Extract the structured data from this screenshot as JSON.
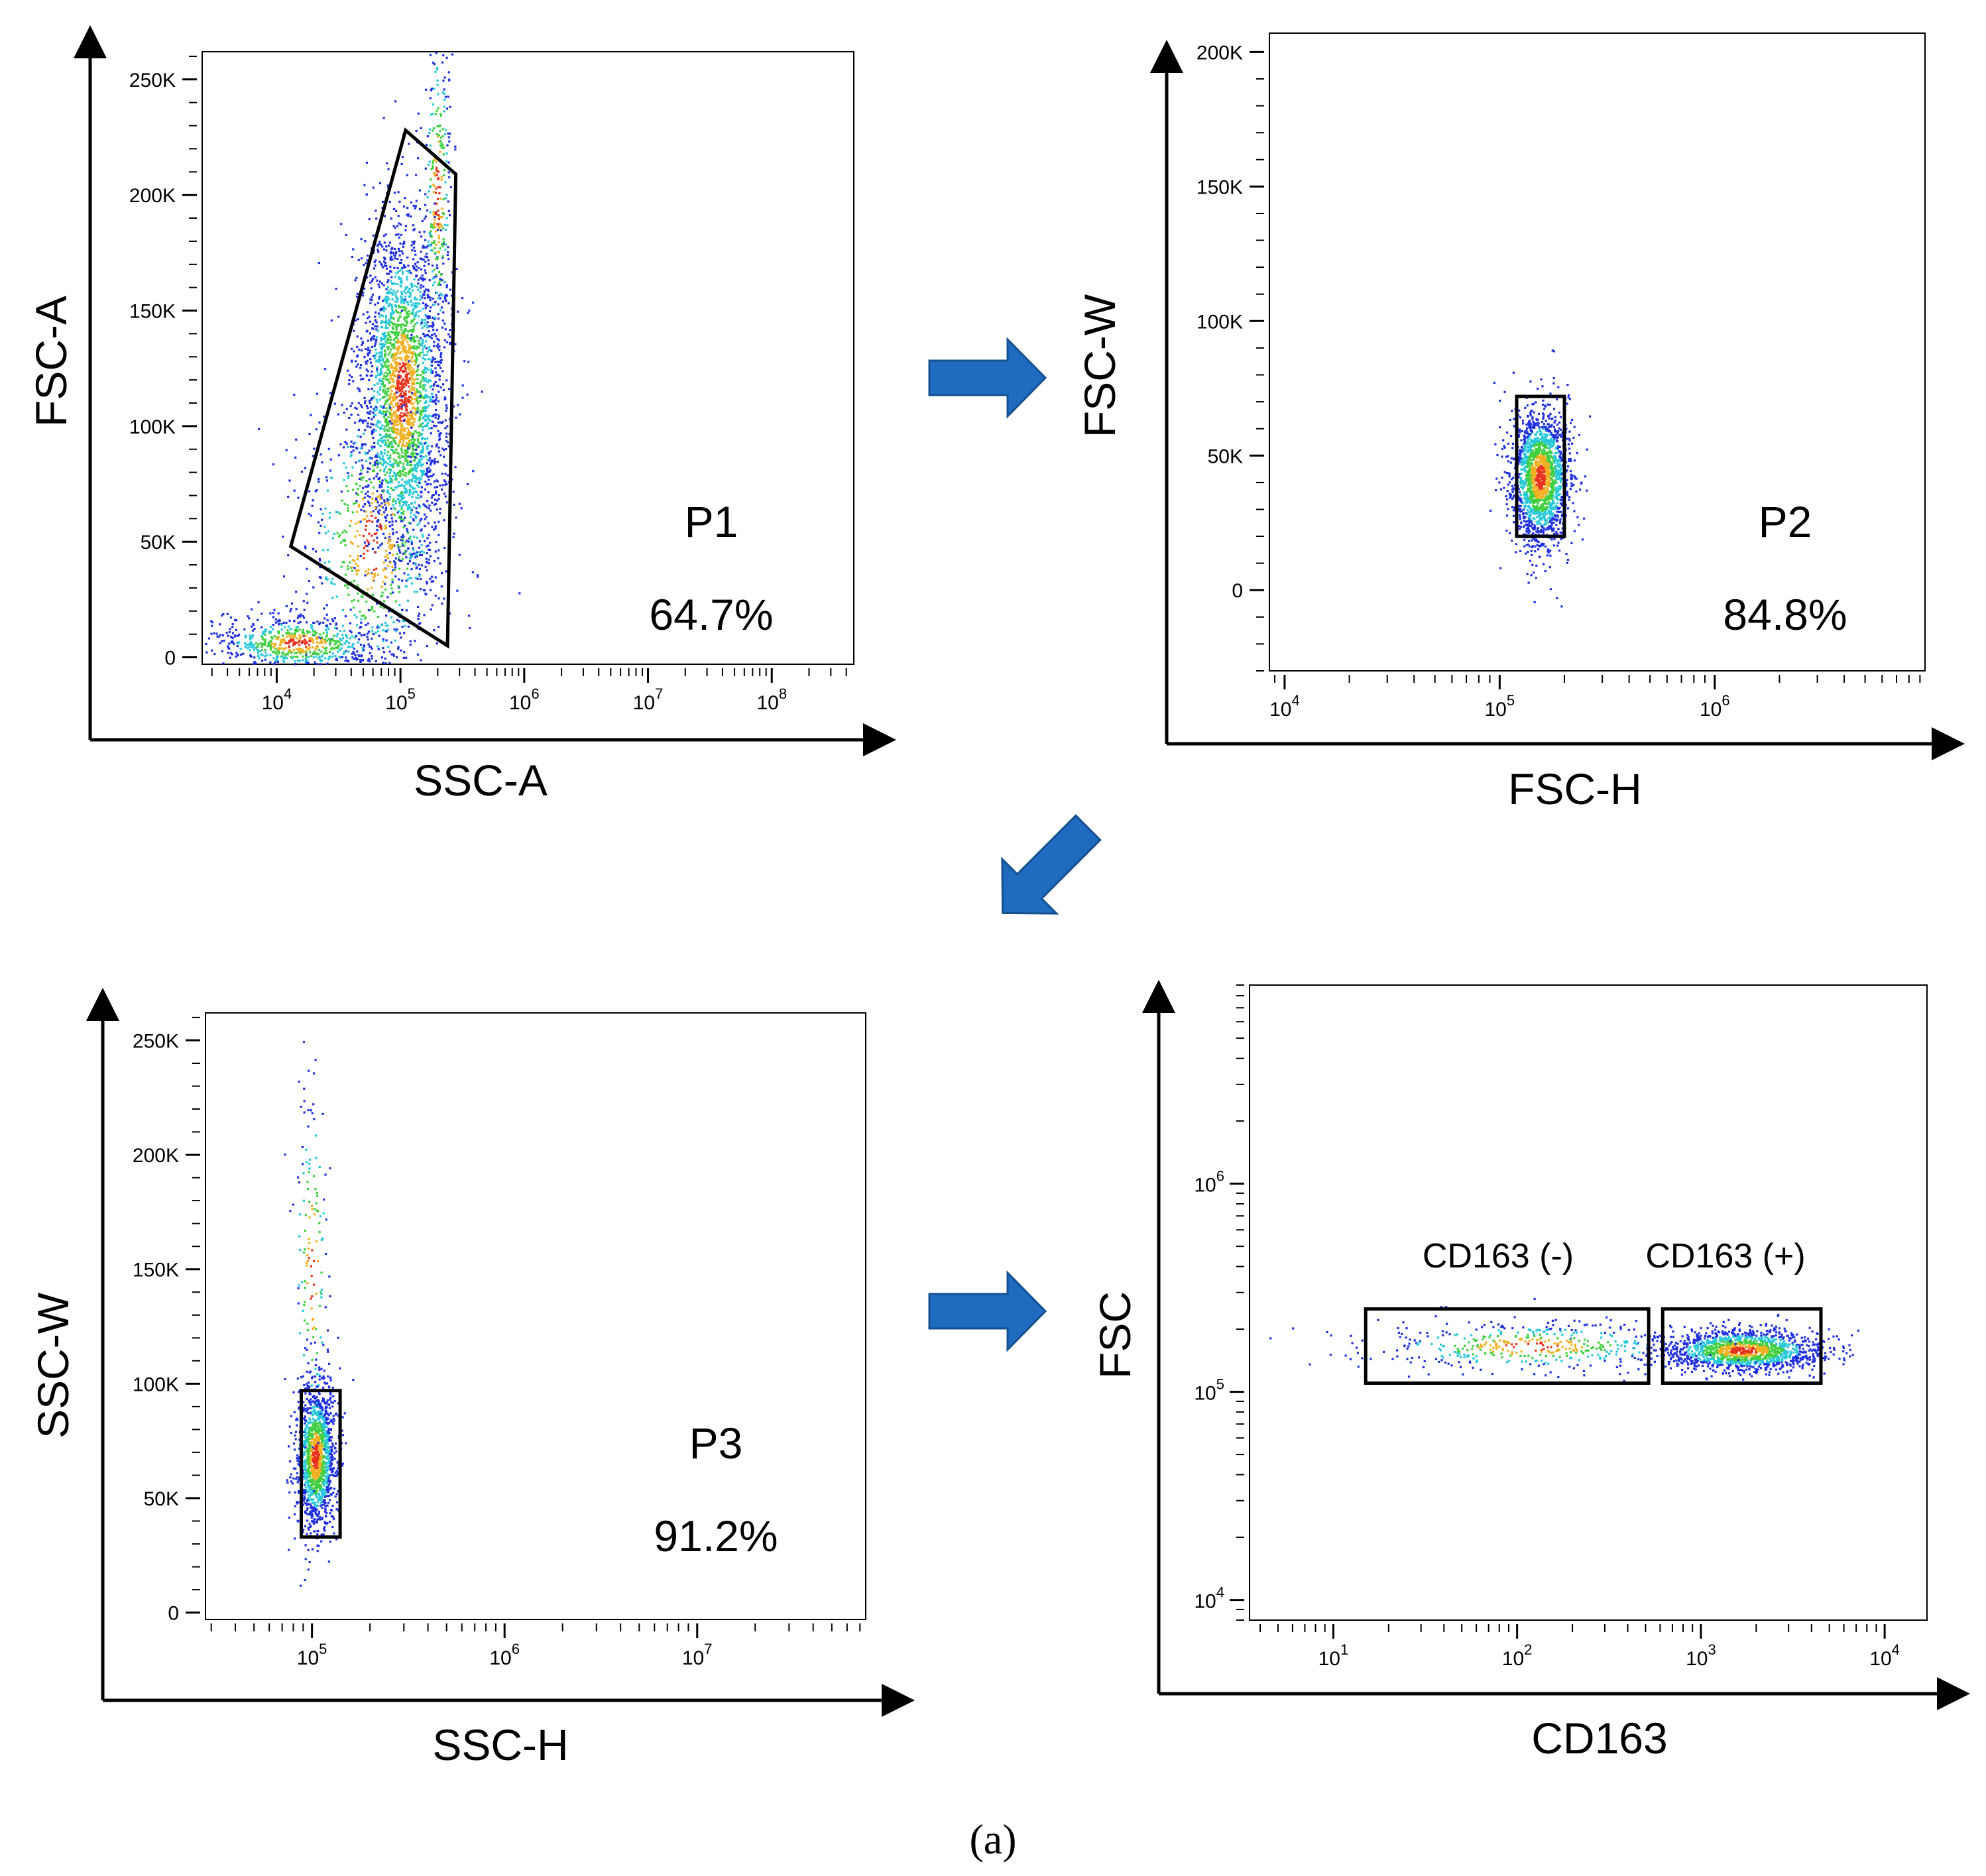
{
  "caption": "(a)",
  "chart_data": [
    {
      "type": "scatter",
      "title": "",
      "xlabel": "SSC-A",
      "ylabel": "FSC-A",
      "x_scale": "log",
      "y_scale": "linear",
      "xlim": [
        2500,
        460000000
      ],
      "ylim": [
        -3000,
        262000
      ],
      "x_ticks": [
        10000,
        100000,
        1000000,
        10000000,
        100000000
      ],
      "x_tick_labels": [
        {
          "base": "10",
          "exp": "4"
        },
        {
          "base": "10",
          "exp": "5"
        },
        {
          "base": "10",
          "exp": "6"
        },
        {
          "base": "10",
          "exp": "7"
        },
        {
          "base": "10",
          "exp": "8"
        }
      ],
      "y_ticks": [
        0,
        50000,
        100000,
        150000,
        200000,
        250000
      ],
      "y_tick_labels": [
        "0",
        "50K",
        "100K",
        "150K",
        "200K",
        "250K"
      ],
      "gates": [
        {
          "name": "P1",
          "percent": "64.7%",
          "shape": "polygon",
          "points": [
            [
              13000,
              48000
            ],
            [
              110000,
              228000
            ],
            [
              280000,
              209000
            ],
            [
              240000,
              5000
            ]
          ]
        }
      ],
      "populations": [
        {
          "x_center": 105000,
          "x_spread": 0.17,
          "y_center": 115000,
          "y_spread": 38000,
          "count": 2600
        },
        {
          "x_center": 60000,
          "x_spread": 0.3,
          "y_center": 50000,
          "y_spread": 35000,
          "count": 700
        },
        {
          "x_center": 15000,
          "x_spread": 0.35,
          "y_center": 6000,
          "y_spread": 6000,
          "count": 700
        },
        {
          "x_center": 200000,
          "x_spread": 0.06,
          "y_center": 200000,
          "y_spread": 40000,
          "count": 300
        }
      ]
    },
    {
      "type": "scatter",
      "title": "",
      "xlabel": "FSC-H",
      "ylabel": "FSC-W",
      "x_scale": "log",
      "y_scale": "linear",
      "xlim": [
        8500,
        9500000
      ],
      "ylim": [
        -30000,
        207000
      ],
      "x_ticks": [
        10000,
        100000,
        1000000
      ],
      "x_tick_labels": [
        {
          "base": "10",
          "exp": "4"
        },
        {
          "base": "10",
          "exp": "5"
        },
        {
          "base": "10",
          "exp": "6"
        }
      ],
      "y_ticks": [
        0,
        50000,
        100000,
        150000,
        200000
      ],
      "y_tick_labels": [
        "0",
        "50K",
        "100K",
        "150K",
        "200K"
      ],
      "gates": [
        {
          "name": "P2",
          "percent": "84.8%",
          "shape": "rect",
          "x": [
            120000,
            200000
          ],
          "y": [
            20000,
            72000
          ]
        }
      ],
      "populations": [
        {
          "x_center": 155000,
          "x_spread": 0.07,
          "y_center": 42000,
          "y_spread": 13000,
          "count": 1800
        }
      ]
    },
    {
      "type": "scatter",
      "title": "",
      "xlabel": "SSC-H",
      "ylabel": "SSC-W",
      "x_scale": "log",
      "y_scale": "linear",
      "xlim": [
        28000,
        75000000
      ],
      "ylim": [
        -3000,
        262000
      ],
      "x_ticks": [
        100000,
        1000000,
        10000000
      ],
      "x_tick_labels": [
        {
          "base": "10",
          "exp": "5"
        },
        {
          "base": "10",
          "exp": "6"
        },
        {
          "base": "10",
          "exp": "7"
        }
      ],
      "y_ticks": [
        0,
        50000,
        100000,
        150000,
        200000,
        250000
      ],
      "y_tick_labels": [
        "0",
        "50K",
        "100K",
        "150K",
        "200K",
        "250K"
      ],
      "gates": [
        {
          "name": "P3",
          "percent": "91.2%",
          "shape": "rect",
          "x": [
            88000,
            140000
          ],
          "y": [
            33000,
            97000
          ]
        }
      ],
      "populations": [
        {
          "x_center": 105000,
          "x_spread": 0.05,
          "y_center": 68000,
          "y_spread": 16000,
          "count": 1400
        },
        {
          "x_center": 100000,
          "x_spread": 0.05,
          "y_center": 150000,
          "y_spread": 45000,
          "count": 150
        }
      ]
    },
    {
      "type": "scatter",
      "title": "",
      "xlabel": "CD163",
      "ylabel": "FSC",
      "x_scale": "log",
      "y_scale": "log",
      "xlim": [
        3.5,
        17000
      ],
      "ylim": [
        8000,
        9000000
      ],
      "x_ticks": [
        10,
        100,
        1000,
        10000
      ],
      "x_tick_labels": [
        {
          "base": "10",
          "exp": "1"
        },
        {
          "base": "10",
          "exp": "2"
        },
        {
          "base": "10",
          "exp": "3"
        },
        {
          "base": "10",
          "exp": "4"
        }
      ],
      "y_ticks": [
        10000,
        100000,
        1000000
      ],
      "y_tick_labels": [
        {
          "base": "10",
          "exp": "4"
        },
        {
          "base": "10",
          "exp": "5"
        },
        {
          "base": "10",
          "exp": "6"
        }
      ],
      "gates": [
        {
          "name": "CD163 (-)",
          "shape": "rect",
          "x": [
            15,
            520
          ],
          "y": [
            110000,
            250000
          ]
        },
        {
          "name": "CD163 (+)",
          "shape": "rect",
          "x": [
            620,
            4500
          ],
          "y": [
            110000,
            250000
          ]
        }
      ],
      "populations": [
        {
          "x_center": 1700,
          "x_spread": 0.22,
          "y_center": 158000,
          "y_spread": 0.05,
          "count": 1500
        },
        {
          "x_center": 120,
          "x_spread": 0.45,
          "y_center": 165000,
          "y_spread": 0.06,
          "count": 450
        }
      ]
    }
  ]
}
